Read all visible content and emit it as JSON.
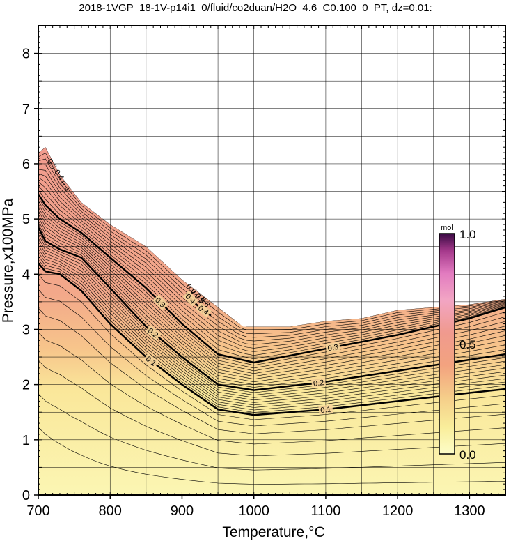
{
  "chart_data": {
    "type": "heatmap",
    "title": "2018-1VGP_18-1V-p14i1_0/fluid/co2duan/H2O_4.6_C0.100_0_PT, dz=0.01:",
    "xlabel": "Temperature,°C",
    "ylabel": "Pressure,x100MPa",
    "xlim": [
      700,
      1350
    ],
    "ylim": [
      0,
      8.5
    ],
    "x_ticks": [
      "700",
      "800",
      "900",
      "1000",
      "1100",
      "1200",
      "1300"
    ],
    "y_ticks": [
      "0",
      "1",
      "2",
      "3",
      "4",
      "5",
      "6",
      "7",
      "8"
    ],
    "grid": true,
    "stable_boundary": {
      "temperature": [
        700,
        710,
        730,
        760,
        800,
        850,
        900,
        950,
        985,
        1050,
        1100,
        1150,
        1200,
        1250,
        1300,
        1350
      ],
      "pressure": [
        6.2,
        6.3,
        5.8,
        5.3,
        4.9,
        4.5,
        3.9,
        3.4,
        3.05,
        3.05,
        3.15,
        3.2,
        3.35,
        3.4,
        3.45,
        3.55
      ]
    },
    "labeled_contours": [
      {
        "value": 0.1,
        "label": "0.1",
        "temperature": [
          700,
          710,
          730,
          760,
          800,
          850,
          900,
          950,
          1000,
          1100,
          1200,
          1300,
          1350
        ],
        "pressure": [
          4.2,
          4.05,
          4.0,
          3.7,
          3.1,
          2.5,
          2.0,
          1.55,
          1.45,
          1.55,
          1.7,
          1.85,
          1.92
        ]
      },
      {
        "value": 0.2,
        "label": "0.2",
        "temperature": [
          700,
          710,
          730,
          760,
          800,
          850,
          900,
          950,
          1000,
          1100,
          1200,
          1300,
          1350
        ],
        "pressure": [
          4.85,
          4.6,
          4.45,
          4.3,
          3.75,
          3.05,
          2.5,
          2.0,
          1.9,
          2.05,
          2.25,
          2.45,
          2.55
        ]
      },
      {
        "value": 0.3,
        "label": "0.3",
        "temperature": [
          700,
          710,
          730,
          760,
          800,
          850,
          900,
          950,
          1000,
          1100,
          1200,
          1300,
          1350
        ],
        "pressure": [
          5.45,
          5.25,
          5.0,
          4.75,
          4.3,
          3.75,
          3.1,
          2.55,
          2.4,
          2.65,
          2.9,
          3.2,
          3.4
        ]
      },
      {
        "value": 0.4,
        "label": "0.4",
        "temperature": [
          905,
          920,
          940
        ],
        "pressure": [
          3.65,
          3.45,
          3.25
        ]
      }
    ],
    "extra_labels": [
      "0.3",
      "0.4",
      "0.4",
      "0.4",
      "0.3",
      "0.5",
      "0.6"
    ],
    "colorbar": {
      "unit": "mol",
      "min_label": "0.0",
      "mid_label": "0.5",
      "max_label": "1.0",
      "stops": [
        {
          "value": 0.0,
          "color": "#fdfdc8"
        },
        {
          "value": 0.12,
          "color": "#f9ee9b"
        },
        {
          "value": 0.25,
          "color": "#f5cf8a"
        },
        {
          "value": 0.4,
          "color": "#f3a37f"
        },
        {
          "value": 0.55,
          "color": "#f09a8e"
        },
        {
          "value": 0.7,
          "color": "#f2a5c4"
        },
        {
          "value": 0.82,
          "color": "#e27bc0"
        },
        {
          "value": 0.92,
          "color": "#a63a8c"
        },
        {
          "value": 1.0,
          "color": "#3a0a44"
        }
      ]
    }
  }
}
